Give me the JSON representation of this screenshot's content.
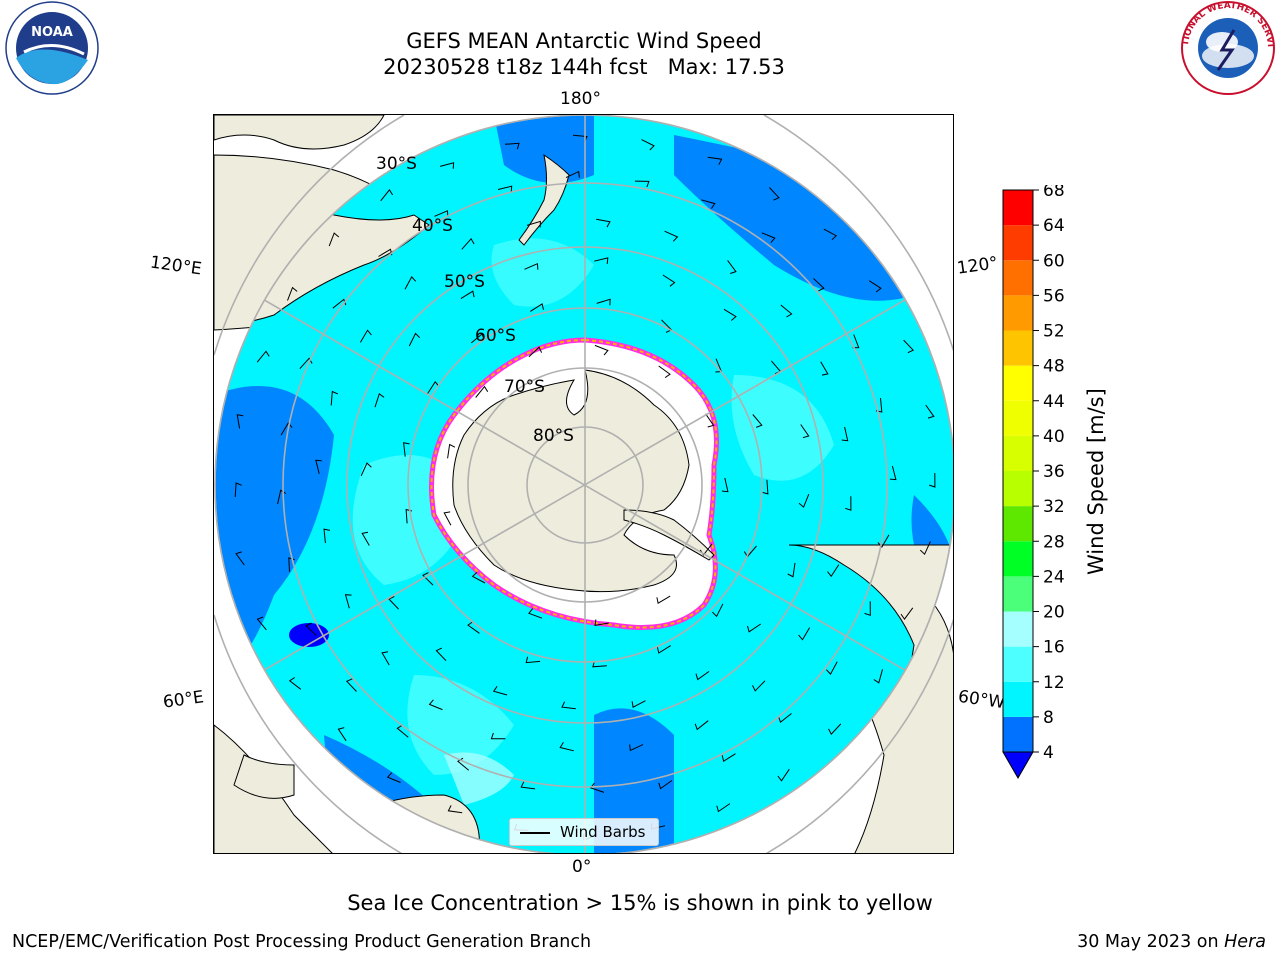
{
  "title": {
    "line1": "GEFS MEAN Antarctic Wind Speed",
    "line2": "20230528 t18z 144h fcst   Max: 17.53"
  },
  "logos": {
    "left": {
      "icon": "noaa-logo",
      "text": "NOAA"
    },
    "right": {
      "icon": "national-weather-service-logo",
      "text": "NATIONAL WEATHER SERVICE"
    }
  },
  "map": {
    "projection": "south-polar-stereographic",
    "longitude_labels": [
      "180°",
      "120°E",
      "120°",
      "60°E",
      "60°W",
      "0°"
    ],
    "latitude_labels": [
      "30°S",
      "40°S",
      "50°S",
      "60°S",
      "70°S",
      "80°S"
    ],
    "ocean_color": "#00f5ff",
    "land_color": "#eeecdc",
    "sea_ice_edge_colors": [
      "#ff2ee6",
      "#ffb000",
      "#ffe840"
    ]
  },
  "legend": {
    "label": "Wind Barbs"
  },
  "colorbar": {
    "label": "Wind Speed [m/s]",
    "ticks": [
      "4",
      "8",
      "12",
      "16",
      "20",
      "24",
      "28",
      "32",
      "36",
      "40",
      "44",
      "48",
      "52",
      "56",
      "60",
      "64",
      "68"
    ],
    "colors": [
      "#0072ff",
      "#00f5ff",
      "#4dffff",
      "#a6ffff",
      "#4cff7a",
      "#00ff24",
      "#5ee800",
      "#b8ff00",
      "#d7ff00",
      "#f0ff00",
      "#ffff00",
      "#ffc400",
      "#ff9a00",
      "#ff7000",
      "#ff3c00",
      "#ff0000"
    ],
    "under_color": "#0000ff"
  },
  "footer": {
    "note": "Sea Ice Concentration > 15% is shown in pink to yellow",
    "left": "NCEP/EMC/Verification Post Processing Product Generation Branch",
    "right_prefix": "30 May 2023 on ",
    "right_machine": "Hera"
  }
}
